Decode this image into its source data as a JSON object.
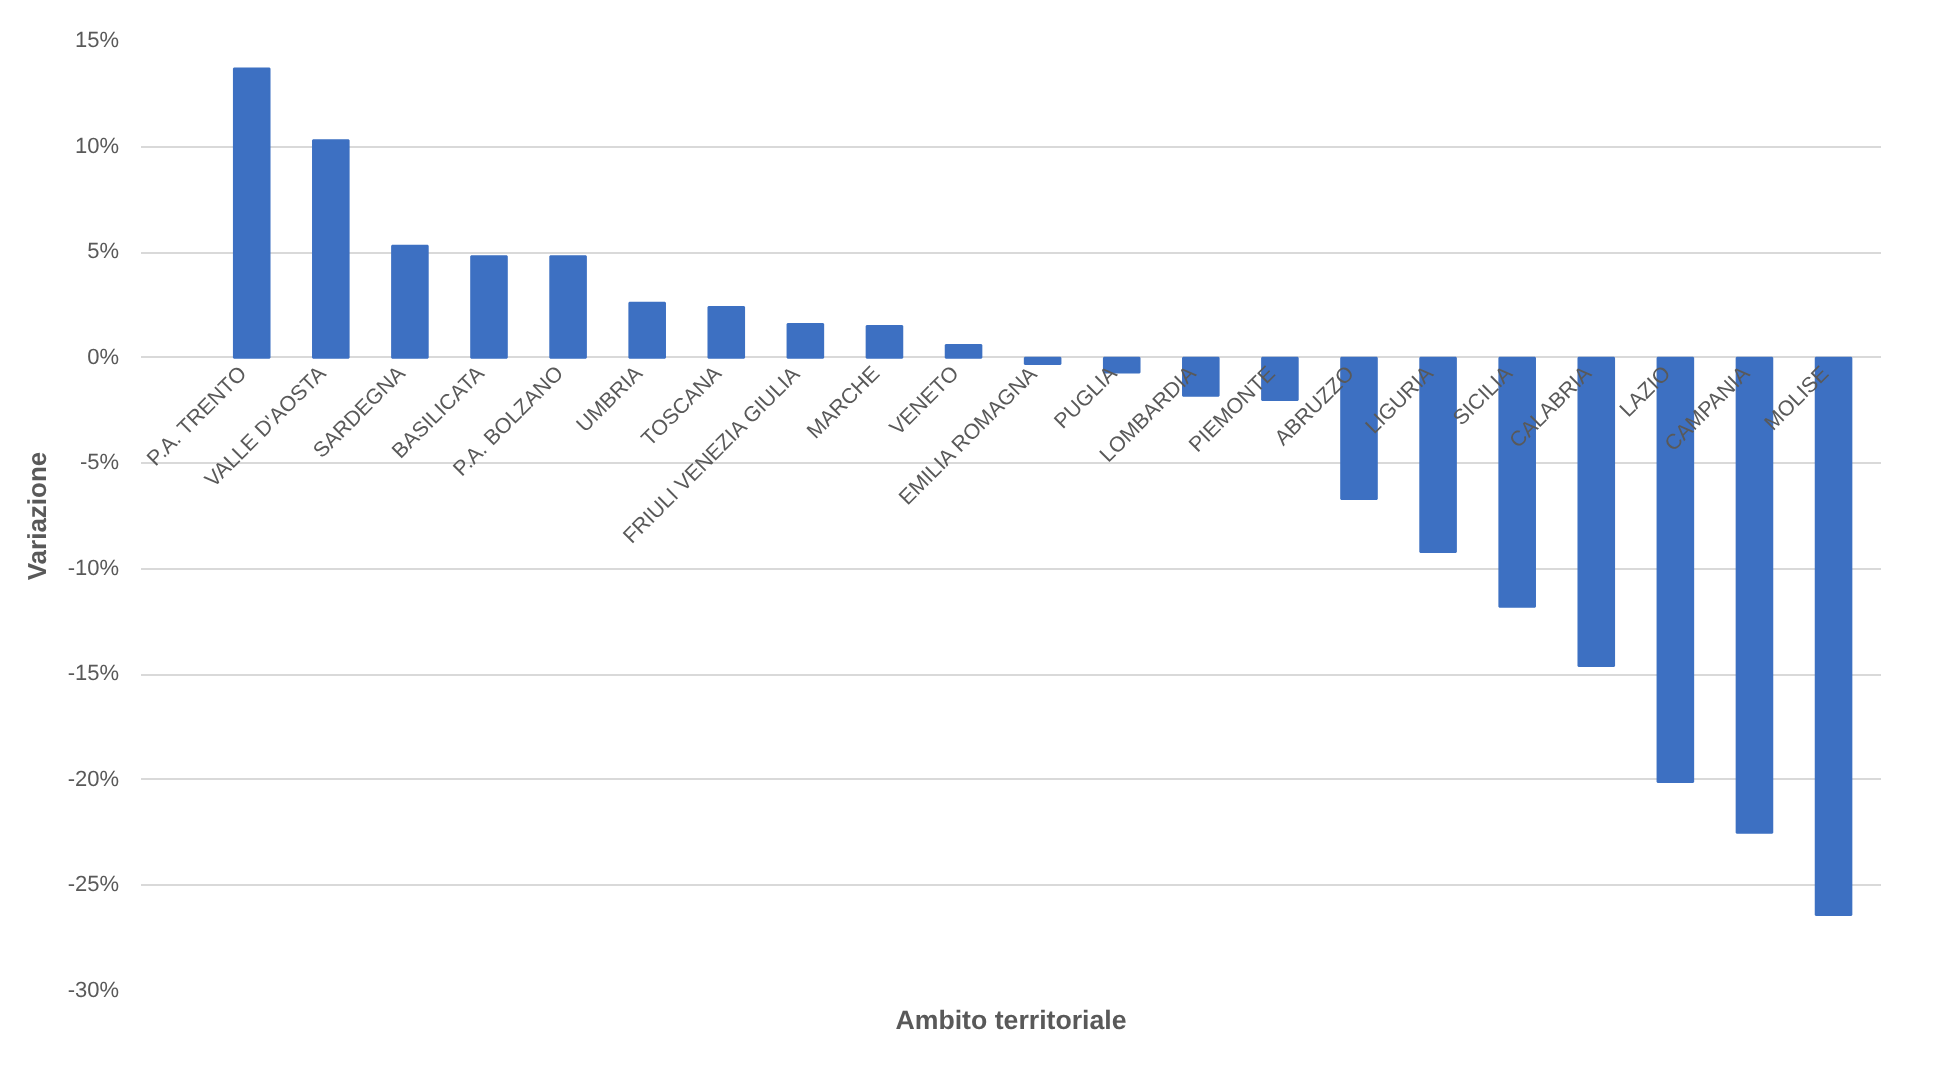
{
  "chart_data": {
    "type": "bar",
    "xlabel": "Ambito territoriale",
    "ylabel": "Variazione",
    "categories": [
      "P.A. TRENTO",
      "VALLE D'AOSTA",
      "SARDEGNA",
      "BASILICATA",
      "P.A. BOLZANO",
      "UMBRIA",
      "TOSCANA",
      "FRIULI VENEZIA GIULIA",
      "MARCHE",
      "VENETO",
      "EMILIA ROMAGNA",
      "PUGLIA",
      "LOMBARDIA",
      "PIEMONTE",
      "ABRUZZO",
      "LIGURIA",
      "SICILIA",
      "CALABRIA",
      "LAZIO",
      "CAMPANIA",
      "MOLISE"
    ],
    "values": [
      13.7,
      10.3,
      5.3,
      4.8,
      4.8,
      2.6,
      2.4,
      1.6,
      1.5,
      0.6,
      -0.3,
      -0.7,
      -1.8,
      -2.0,
      -6.7,
      -9.2,
      -11.8,
      -14.6,
      -20.1,
      -22.5,
      -26.4
    ],
    "color": "#3d70c2",
    "ylim": [
      -30,
      15
    ],
    "yticks": [
      {
        "value": -30,
        "label": "-30%"
      },
      {
        "value": -25,
        "label": "-25%"
      },
      {
        "value": -20,
        "label": "-20%"
      },
      {
        "value": -15,
        "label": "-15%"
      },
      {
        "value": -10,
        "label": "-10%"
      },
      {
        "value": -5,
        "label": "-5%"
      },
      {
        "value": 0,
        "label": "0%"
      },
      {
        "value": 5,
        "label": "5%"
      },
      {
        "value": 10,
        "label": "10%"
      },
      {
        "value": 15,
        "label": "15%"
      }
    ],
    "grid": "y"
  }
}
